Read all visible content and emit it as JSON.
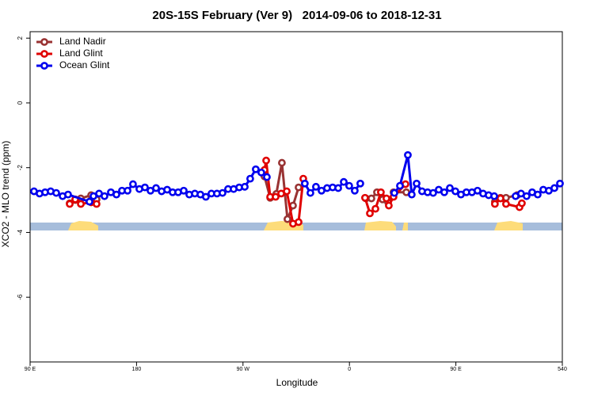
{
  "chart_data": {
    "type": "line",
    "title": "20S-15S February (Ver 9)   2014-09-06 to 2018-12-31",
    "x_label": "Longitude",
    "y_label": "XCO2 - MLO trend (ppm)",
    "xlim": [
      90,
      540
    ],
    "ylim": [
      -8,
      2.2
    ],
    "xticks": [
      {
        "value": 90,
        "label": "90 E"
      },
      180,
      {
        "value": 270,
        "label": "90 W"
      },
      {
        "value": 360,
        "label": "0"
      },
      {
        "value": 450,
        "label": "90 E"
      },
      540
    ],
    "yticks": [
      -6,
      -4,
      -2,
      0,
      2
    ],
    "legend": "top-left",
    "series": [
      {
        "name": "Land Nadir",
        "color": "#993333",
        "x": [
          123.5,
          128.2,
          132.9,
          141.6,
          146.2,
          null,
          288.2,
          293.0,
          298.2,
          302.9,
          307.6,
          312.3,
          317.0,
          null,
          373.9,
          378.6,
          383.3,
          388.0,
          392.7,
          397.3,
          408.1,
          null,
          483.0,
          487.7,
          492.4,
          501.8
        ],
        "values": [
          -3.1,
          -3.0,
          -2.95,
          -2.85,
          -2.98,
          null,
          -2.27,
          -2.93,
          -2.81,
          -1.85,
          -3.59,
          -3.17,
          -2.61,
          null,
          -2.95,
          -2.95,
          -2.76,
          -2.98,
          -3.07,
          -2.76,
          -2.76,
          null,
          -3.05,
          -2.93,
          -2.93,
          -2.85
        ]
      },
      {
        "name": "Land Glint",
        "color": "#e00000",
        "x": [
          123.5,
          128.2,
          132.9,
          141.6,
          146.2,
          null,
          288.2,
          289.6,
          293.0,
          297.6,
          302.3,
          307.0,
          312.3,
          317.0,
          321.0,
          null,
          373.2,
          377.3,
          382.0,
          386.6,
          391.3,
          393.3,
          397.3,
          407.4,
          null,
          483.0,
          487.7,
          492.4,
          503.8,
          505.8
        ],
        "values": [
          -3.12,
          -2.98,
          -3.12,
          -3.07,
          -3.12,
          null,
          -2.07,
          -1.78,
          -2.9,
          -2.9,
          -2.8,
          -2.73,
          -3.73,
          -3.68,
          -2.34,
          null,
          -2.93,
          -3.41,
          -3.27,
          -2.76,
          -2.95,
          -3.17,
          -2.9,
          -2.51,
          null,
          -3.12,
          -2.95,
          -3.12,
          -3.22,
          -3.1
        ]
      },
      {
        "name": "Ocean Glint",
        "color": "#0000ee",
        "x": [
          93.3,
          98.0,
          102.7,
          107.4,
          112.1,
          117.5,
          122.1,
          140.2,
          143.6,
          148.3,
          152.9,
          158.3,
          163.0,
          167.7,
          172.4,
          177.0,
          182.4,
          187.1,
          191.8,
          196.5,
          201.2,
          205.9,
          210.5,
          215.2,
          219.9,
          224.6,
          229.3,
          234.0,
          238.6,
          243.3,
          248.0,
          252.7,
          257.4,
          262.1,
          266.8,
          271.5,
          276.1,
          280.8,
          285.5,
          290.2,
          null,
          322.3,
          327.0,
          331.7,
          336.4,
          341.1,
          345.8,
          350.5,
          355.2,
          359.8,
          364.5,
          369.2,
          null,
          398.0,
          402.7,
          409.4,
          412.7,
          416.8,
          421.4,
          426.1,
          430.8,
          435.5,
          440.2,
          444.9,
          449.6,
          454.3,
          458.9,
          463.6,
          468.3,
          473.0,
          477.7,
          482.4,
          null,
          500.5,
          505.1,
          509.8,
          514.5,
          519.2,
          523.9,
          528.6,
          533.3,
          538.0
        ],
        "values": [
          -2.73,
          -2.8,
          -2.76,
          -2.73,
          -2.78,
          -2.88,
          -2.83,
          -3.05,
          -2.88,
          -2.8,
          -2.88,
          -2.76,
          -2.83,
          -2.71,
          -2.71,
          -2.51,
          -2.66,
          -2.61,
          -2.71,
          -2.63,
          -2.73,
          -2.68,
          -2.76,
          -2.76,
          -2.71,
          -2.83,
          -2.8,
          -2.83,
          -2.9,
          -2.8,
          -2.8,
          -2.78,
          -2.66,
          -2.66,
          -2.61,
          -2.59,
          -2.34,
          -2.05,
          -2.15,
          -2.29,
          null,
          -2.49,
          -2.78,
          -2.59,
          -2.71,
          -2.63,
          -2.61,
          -2.63,
          -2.44,
          -2.56,
          -2.71,
          -2.49,
          null,
          -2.78,
          -2.56,
          -1.61,
          -2.83,
          -2.49,
          -2.73,
          -2.76,
          -2.78,
          -2.68,
          -2.76,
          -2.63,
          -2.73,
          -2.83,
          -2.76,
          -2.76,
          -2.71,
          -2.8,
          -2.85,
          -2.88,
          null,
          -2.88,
          -2.8,
          -2.88,
          -2.76,
          -2.83,
          -2.68,
          -2.71,
          -2.63,
          -2.49
        ]
      }
    ]
  }
}
